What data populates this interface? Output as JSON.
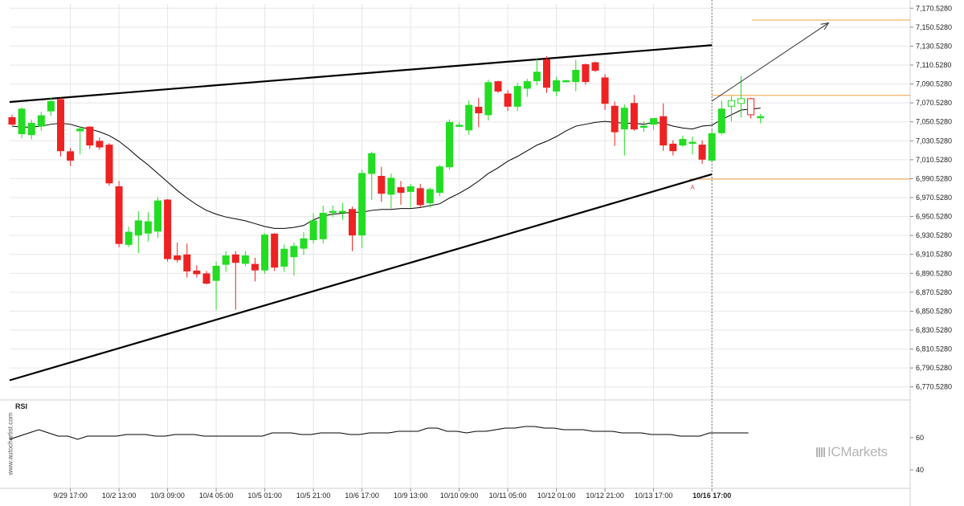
{
  "chart_data": {
    "type": "candlestick",
    "y_axis": {
      "ticks": [
        "7,170.5280",
        "7,150.5280",
        "7,130.5280",
        "7,110.5280",
        "7,090.5280",
        "7,070.5280",
        "7,050.5280",
        "7,030.5280",
        "7,010.5280",
        "6,990.5280",
        "6,970.5280",
        "6,950.5280",
        "6,930.5280",
        "6,910.5280",
        "6,890.5280",
        "6,870.5280",
        "6,850.5280",
        "6,830.5280",
        "6,810.5280",
        "6,790.5280",
        "6,770.5280"
      ],
      "range": [
        6763.5,
        7175.0
      ]
    },
    "x_axis": {
      "ticks": [
        "9/29 17:00",
        "10/2 13:00",
        "10/3 09:00",
        "10/4 05:00",
        "10/5 01:00",
        "10/5 21:00",
        "10/6 17:00",
        "10/9 13:00",
        "10/10 09:00",
        "10/11 05:00",
        "10/12 01:00",
        "10/12 21:00",
        "10/13 17:00",
        "10/16 17:00"
      ],
      "tick_candle_index": [
        6,
        11,
        16,
        21,
        26,
        31,
        36,
        41,
        46,
        51,
        56,
        61,
        66,
        72
      ],
      "highlighted": "10/16 17:00"
    },
    "candles": [
      {
        "o": 7055,
        "h": 7058,
        "l": 7047,
        "c": 7048
      },
      {
        "o": 7038,
        "h": 7066,
        "l": 7033,
        "c": 7064
      },
      {
        "o": 7037,
        "h": 7053,
        "l": 7032,
        "c": 7049
      },
      {
        "o": 7046,
        "h": 7061,
        "l": 7041,
        "c": 7057
      },
      {
        "o": 7062,
        "h": 7076,
        "l": 7057,
        "c": 7072
      },
      {
        "o": 7074,
        "h": 7076,
        "l": 7014,
        "c": 7020
      },
      {
        "o": 7019,
        "h": 7023,
        "l": 7004,
        "c": 7010
      },
      {
        "o": 7041,
        "h": 7046,
        "l": 7016,
        "c": 7043
      },
      {
        "o": 7045,
        "h": 7046,
        "l": 7022,
        "c": 7026
      },
      {
        "o": 7030,
        "h": 7034,
        "l": 7021,
        "c": 7024
      },
      {
        "o": 7026,
        "h": 7028,
        "l": 6983,
        "c": 6986
      },
      {
        "o": 6982,
        "h": 6988,
        "l": 6918,
        "c": 6922
      },
      {
        "o": 6921,
        "h": 6940,
        "l": 6918,
        "c": 6934
      },
      {
        "o": 6931,
        "h": 6956,
        "l": 6912,
        "c": 6946
      },
      {
        "o": 6933,
        "h": 6955,
        "l": 6924,
        "c": 6945
      },
      {
        "o": 6935,
        "h": 6971,
        "l": 6928,
        "c": 6967
      },
      {
        "o": 6968,
        "h": 6969,
        "l": 6903,
        "c": 6906
      },
      {
        "o": 6909,
        "h": 6923,
        "l": 6902,
        "c": 6905
      },
      {
        "o": 6910,
        "h": 6922,
        "l": 6886,
        "c": 6893
      },
      {
        "o": 6893,
        "h": 6899,
        "l": 6886,
        "c": 6890
      },
      {
        "o": 6890,
        "h": 6893,
        "l": 6879,
        "c": 6880
      },
      {
        "o": 6883,
        "h": 6903,
        "l": 6852,
        "c": 6898
      },
      {
        "o": 6900,
        "h": 6914,
        "l": 6892,
        "c": 6909
      },
      {
        "o": 6910,
        "h": 6914,
        "l": 6852,
        "c": 6902
      },
      {
        "o": 6901,
        "h": 6914,
        "l": 6898,
        "c": 6909
      },
      {
        "o": 6900,
        "h": 6907,
        "l": 6882,
        "c": 6894
      },
      {
        "o": 6894,
        "h": 6933,
        "l": 6890,
        "c": 6931
      },
      {
        "o": 6932,
        "h": 6933,
        "l": 6893,
        "c": 6897
      },
      {
        "o": 6898,
        "h": 6921,
        "l": 6892,
        "c": 6916
      },
      {
        "o": 6908,
        "h": 6923,
        "l": 6888,
        "c": 6919
      },
      {
        "o": 6917,
        "h": 6934,
        "l": 6910,
        "c": 6927
      },
      {
        "o": 6926,
        "h": 6954,
        "l": 6922,
        "c": 6946
      },
      {
        "o": 6927,
        "h": 6962,
        "l": 6922,
        "c": 6954
      },
      {
        "o": 6955,
        "h": 6962,
        "l": 6950,
        "c": 6956
      },
      {
        "o": 6955,
        "h": 6965,
        "l": 6947,
        "c": 6956
      },
      {
        "o": 6958,
        "h": 6961,
        "l": 6914,
        "c": 6931
      },
      {
        "o": 6931,
        "h": 7000,
        "l": 6917,
        "c": 6996
      },
      {
        "o": 6996,
        "h": 7019,
        "l": 6968,
        "c": 7017
      },
      {
        "o": 6993,
        "h": 7003,
        "l": 6966,
        "c": 6975
      },
      {
        "o": 6974,
        "h": 6996,
        "l": 6959,
        "c": 6991
      },
      {
        "o": 6981,
        "h": 6988,
        "l": 6963,
        "c": 6976
      },
      {
        "o": 6977,
        "h": 6985,
        "l": 6960,
        "c": 6982
      },
      {
        "o": 6980,
        "h": 6985,
        "l": 6960,
        "c": 6963
      },
      {
        "o": 6965,
        "h": 6981,
        "l": 6960,
        "c": 6979
      },
      {
        "o": 6976,
        "h": 7005,
        "l": 6972,
        "c": 7003
      },
      {
        "o": 7003,
        "h": 7053,
        "l": 7000,
        "c": 7050
      },
      {
        "o": 7047,
        "h": 7050,
        "l": 7045,
        "c": 7047
      },
      {
        "o": 7042,
        "h": 7073,
        "l": 7037,
        "c": 7068
      },
      {
        "o": 7066,
        "h": 7076,
        "l": 7045,
        "c": 7060
      },
      {
        "o": 7058,
        "h": 7095,
        "l": 7052,
        "c": 7092
      },
      {
        "o": 7093,
        "h": 7094,
        "l": 7081,
        "c": 7083
      },
      {
        "o": 7080,
        "h": 7084,
        "l": 7062,
        "c": 7067
      },
      {
        "o": 7067,
        "h": 7092,
        "l": 7062,
        "c": 7088
      },
      {
        "o": 7086,
        "h": 7096,
        "l": 7077,
        "c": 7093
      },
      {
        "o": 7094,
        "h": 7117,
        "l": 7089,
        "c": 7103
      },
      {
        "o": 7116,
        "h": 7120,
        "l": 7081,
        "c": 7087
      },
      {
        "o": 7083,
        "h": 7098,
        "l": 7078,
        "c": 7094
      },
      {
        "o": 7093,
        "h": 7095,
        "l": 7093,
        "c": 7094
      },
      {
        "o": 7093,
        "h": 7116,
        "l": 7083,
        "c": 7105
      },
      {
        "o": 7111,
        "h": 7112,
        "l": 7090,
        "c": 7093
      },
      {
        "o": 7113,
        "h": 7114,
        "l": 7103,
        "c": 7105
      },
      {
        "o": 7097,
        "h": 7101,
        "l": 7063,
        "c": 7070
      },
      {
        "o": 7067,
        "h": 7072,
        "l": 7025,
        "c": 7040
      },
      {
        "o": 7043,
        "h": 7069,
        "l": 7015,
        "c": 7065
      },
      {
        "o": 7070,
        "h": 7079,
        "l": 7041,
        "c": 7043
      },
      {
        "o": 7045,
        "h": 7051,
        "l": 7040,
        "c": 7046
      },
      {
        "o": 7048,
        "h": 7053,
        "l": 7042,
        "c": 7054
      },
      {
        "o": 7056,
        "h": 7070,
        "l": 7020,
        "c": 7026
      },
      {
        "o": 7027,
        "h": 7031,
        "l": 7015,
        "c": 7020
      },
      {
        "o": 7026,
        "h": 7036,
        "l": 7024,
        "c": 7032
      },
      {
        "o": 7029,
        "h": 7035,
        "l": 7016,
        "c": 7029
      },
      {
        "o": 7026,
        "h": 7031,
        "l": 7006,
        "c": 7011
      },
      {
        "o": 7010,
        "h": 7042,
        "l": 7008,
        "c": 7038
      },
      {
        "o": 7039,
        "h": 7073,
        "l": 7037,
        "c": 7064
      },
      {
        "o": 7067,
        "h": 7078,
        "l": 7051,
        "c": 7073
      },
      {
        "o": 7070,
        "h": 7099,
        "l": 7055,
        "c": 7075
      },
      {
        "o": 7075,
        "h": 7076,
        "l": 7054,
        "c": 7058
      },
      {
        "o": 7055,
        "h": 7059,
        "l": 7049,
        "c": 7056
      }
    ],
    "moving_average": [
      7046,
      7045,
      7045,
      7046,
      7048,
      7049,
      7048,
      7045,
      7043,
      7040,
      7036,
      7030,
      7022,
      7013,
      7005,
      6996,
      6987,
      6978,
      6970,
      6963,
      6957,
      6953,
      6950,
      6948,
      6946,
      6943,
      6940,
      6938,
      6938,
      6939,
      6941,
      6947,
      6951,
      6953,
      6954,
      6955,
      6955,
      6957,
      6958,
      6958,
      6959,
      6959,
      6960,
      6962,
      6964,
      6970,
      6975,
      6981,
      6988,
      6996,
      7002,
      7009,
      7014,
      7020,
      7026,
      7030,
      7035,
      7041,
      7046,
      7048,
      7050,
      7051,
      7050,
      7049,
      7049,
      7048,
      7050,
      7049,
      7046,
      7044,
      7043,
      7046,
      7047,
      7053,
      7058,
      7063,
      7064,
      7065
    ],
    "pattern": {
      "upper_line": {
        "start": {
          "candle": 0,
          "value": 7071.5
        },
        "end": {
          "candle": 72,
          "value": 7131.5
        }
      },
      "lower_line": {
        "start": {
          "candle": 0,
          "value": 6777.5
        },
        "end": {
          "candle": 72,
          "value": 6995.2
        }
      },
      "forecast_arrow": {
        "start": {
          "candle": 72,
          "value": 7072.5
        },
        "end": {
          "candle": 84,
          "value": 7155.0
        }
      },
      "resistance_level": 7078.5,
      "support_level": 6990.0,
      "target_level": 7158.0,
      "marker_label": "A",
      "marker_candle": 70
    },
    "rsi": {
      "label": "RSI",
      "ticks": [
        "60",
        "40"
      ],
      "range": [
        30,
        80
      ],
      "values": [
        59,
        61,
        63,
        65,
        63,
        61,
        61,
        59,
        61,
        61,
        61,
        61,
        62,
        62,
        62,
        61,
        61,
        62,
        62,
        62,
        61,
        61,
        61,
        61,
        61,
        61,
        61,
        63,
        63,
        63,
        62,
        62,
        63,
        63,
        63,
        62,
        62,
        63,
        63,
        63,
        64,
        64,
        64,
        66,
        66,
        64,
        64,
        63,
        64,
        64,
        65,
        66,
        66,
        67,
        67,
        66,
        66,
        65,
        65,
        65,
        64,
        64,
        64,
        63,
        63,
        63,
        62,
        62,
        62,
        61,
        61,
        61,
        63,
        63,
        63,
        63,
        63
      ]
    },
    "colors": {
      "bull": "#22dd22",
      "bear": "#ee2222",
      "level": "#f0a040",
      "trendline": "#000000",
      "ma": "#000000",
      "grid": "#e6e6e6"
    }
  },
  "watermark": "www.autochartist.com",
  "brand": "ICMarkets"
}
